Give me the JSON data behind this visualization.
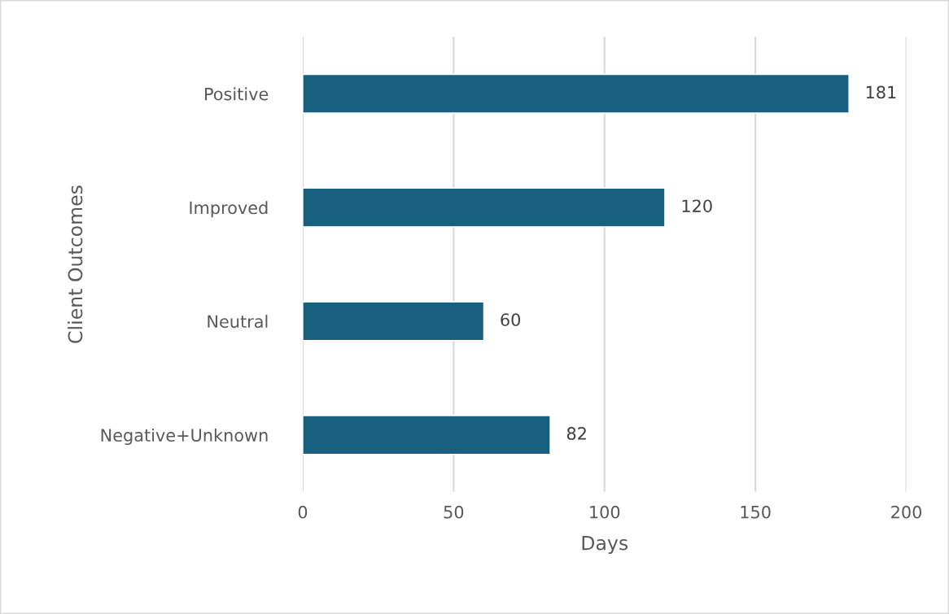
{
  "chart_data": {
    "type": "bar",
    "orientation": "horizontal",
    "xlabel": "Days",
    "ylabel": "Client Outcomes",
    "categories": [
      "Positive",
      "Improved",
      "Neutral",
      "Negative+Unknown"
    ],
    "values": [
      181,
      120,
      60,
      82
    ],
    "color": "#17607f",
    "xlim": [
      0,
      200
    ],
    "xticks": [
      0,
      50,
      100,
      150,
      200
    ],
    "grid": "x",
    "data_labels": true
  }
}
